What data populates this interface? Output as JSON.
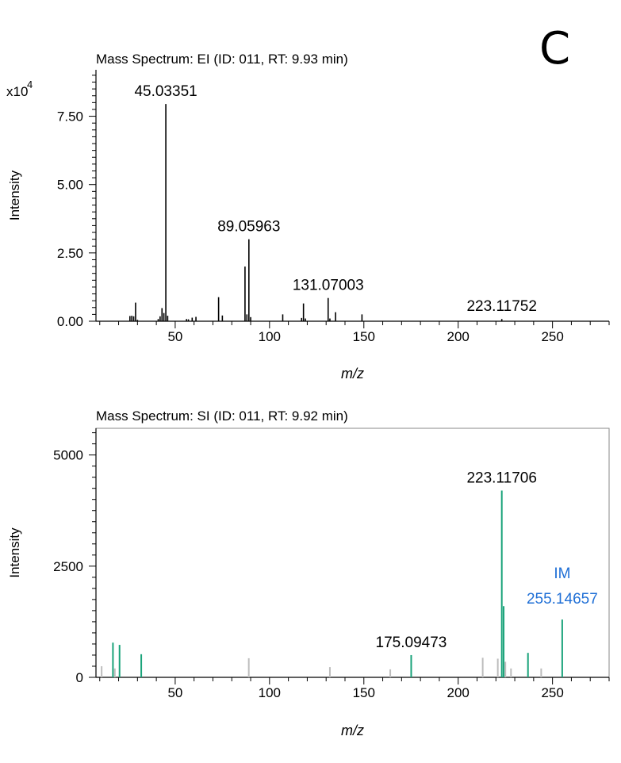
{
  "panel_label": "C",
  "colors": {
    "axis": "#000000",
    "peak": "#000000",
    "matched": "#1aa37a",
    "unmatched": "#bdbdbd",
    "annotation_blue": "#1f6fd6"
  },
  "chart_data": [
    {
      "type": "bar",
      "subtype": "mass-spectrum-stick",
      "title": "Mass Spectrum: EI (ID: 011, RT: 9.93 min)",
      "xlabel": "m/z",
      "ylabel": "Intensity",
      "y_multiplier": "x10",
      "y_multiplier_exp": "4",
      "xlim": [
        8,
        280
      ],
      "ylim": [
        0,
        92000
      ],
      "x_ticks": [
        50,
        100,
        150,
        200,
        250
      ],
      "y_ticks": [
        0,
        25000,
        50000,
        75000
      ],
      "y_tick_labels": [
        "0.00",
        "2.50",
        "5.00",
        "7.50"
      ],
      "grid": false,
      "peaks": [
        {
          "mz": 26,
          "intensity": 1900
        },
        {
          "mz": 27,
          "intensity": 2000
        },
        {
          "mz": 28,
          "intensity": 1800
        },
        {
          "mz": 29,
          "intensity": 6800
        },
        {
          "mz": 30,
          "intensity": 500
        },
        {
          "mz": 41,
          "intensity": 800
        },
        {
          "mz": 42,
          "intensity": 1800
        },
        {
          "mz": 43,
          "intensity": 4800
        },
        {
          "mz": 44,
          "intensity": 3000
        },
        {
          "mz": 45.03351,
          "intensity": 79500
        },
        {
          "mz": 46,
          "intensity": 2000
        },
        {
          "mz": 56,
          "intensity": 800
        },
        {
          "mz": 57,
          "intensity": 700
        },
        {
          "mz": 59,
          "intensity": 1300
        },
        {
          "mz": 61,
          "intensity": 1600
        },
        {
          "mz": 73,
          "intensity": 8800
        },
        {
          "mz": 75,
          "intensity": 2100
        },
        {
          "mz": 87,
          "intensity": 20000
        },
        {
          "mz": 88,
          "intensity": 2500
        },
        {
          "mz": 89.05963,
          "intensity": 30000
        },
        {
          "mz": 90,
          "intensity": 1500
        },
        {
          "mz": 107,
          "intensity": 2500
        },
        {
          "mz": 117,
          "intensity": 1200
        },
        {
          "mz": 118,
          "intensity": 6500
        },
        {
          "mz": 119,
          "intensity": 1000
        },
        {
          "mz": 131.07003,
          "intensity": 8500
        },
        {
          "mz": 132,
          "intensity": 1000
        },
        {
          "mz": 135,
          "intensity": 3300
        },
        {
          "mz": 149,
          "intensity": 2500
        },
        {
          "mz": 223.11752,
          "intensity": 800
        }
      ],
      "annotations": [
        {
          "text": "45.03351",
          "mz": 45.03351,
          "intensity": 79500
        },
        {
          "text": "89.05963",
          "mz": 89.05963,
          "intensity": 30000
        },
        {
          "text": "131.07003",
          "mz": 131.07003,
          "intensity": 8500
        },
        {
          "text": "223.11752",
          "mz": 223.11752,
          "intensity": 800
        }
      ]
    },
    {
      "type": "bar",
      "subtype": "mass-spectrum-stick",
      "title": "Mass Spectrum: SI (ID: 011, RT: 9.92 min)",
      "xlabel": "m/z",
      "ylabel": "Intensity",
      "xlim": [
        8,
        280
      ],
      "ylim": [
        0,
        5600
      ],
      "x_ticks": [
        50,
        100,
        150,
        200,
        250
      ],
      "y_ticks": [
        0,
        2500,
        5000
      ],
      "y_tick_labels": [
        "0",
        "2500",
        "5000"
      ],
      "grid": false,
      "peaks": [
        {
          "mz": 11,
          "intensity": 250,
          "matched": false
        },
        {
          "mz": 17,
          "intensity": 780,
          "matched": true
        },
        {
          "mz": 18,
          "intensity": 200,
          "matched": false
        },
        {
          "mz": 20.5,
          "intensity": 730,
          "matched": true
        },
        {
          "mz": 32,
          "intensity": 520,
          "matched": true
        },
        {
          "mz": 89,
          "intensity": 430,
          "matched": false
        },
        {
          "mz": 132,
          "intensity": 230,
          "matched": false
        },
        {
          "mz": 164,
          "intensity": 180,
          "matched": false
        },
        {
          "mz": 175.09473,
          "intensity": 500,
          "matched": true
        },
        {
          "mz": 213,
          "intensity": 440,
          "matched": false
        },
        {
          "mz": 221,
          "intensity": 420,
          "matched": false
        },
        {
          "mz": 223.11706,
          "intensity": 4200,
          "matched": true
        },
        {
          "mz": 224.1,
          "intensity": 1600,
          "matched": true
        },
        {
          "mz": 225,
          "intensity": 350,
          "matched": false
        },
        {
          "mz": 228,
          "intensity": 200,
          "matched": false
        },
        {
          "mz": 237,
          "intensity": 550,
          "matched": true
        },
        {
          "mz": 244,
          "intensity": 200,
          "matched": false
        },
        {
          "mz": 255.14657,
          "intensity": 1300,
          "matched": true
        }
      ],
      "annotations": [
        {
          "text": "223.11706",
          "mz": 223.11706,
          "intensity": 4200
        },
        {
          "text": "175.09473",
          "mz": 175.09473,
          "intensity": 500
        },
        {
          "text": "IM",
          "mz": 255.14657,
          "intensity": 1300,
          "color": "annotation_blue",
          "line": 0
        },
        {
          "text": "255.14657",
          "mz": 255.14657,
          "intensity": 1300,
          "color": "annotation_blue",
          "line": 1
        }
      ]
    }
  ]
}
